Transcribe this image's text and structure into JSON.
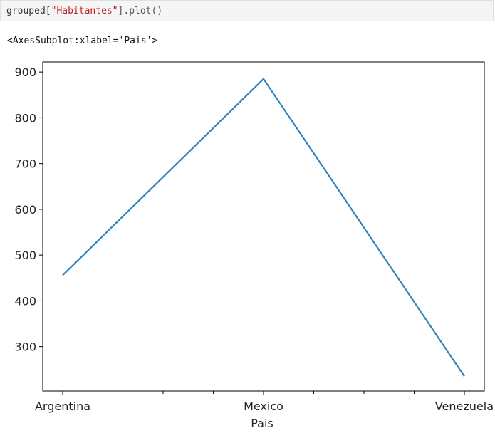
{
  "cell": {
    "code_prefix": "grouped[",
    "code_string": "\"Habitantes\"",
    "code_suffix": "].plot()"
  },
  "output": {
    "repr": "<AxesSubplot:xlabel='Pais'>"
  },
  "chart_data": {
    "type": "line",
    "categories": [
      "Argentina",
      "Mexico",
      "Venezuela"
    ],
    "series": [
      {
        "values": [
          456,
          885,
          235
        ],
        "color": "#3182bd"
      }
    ],
    "xlabel": "Pais",
    "ylabel": "",
    "yticks": [
      300,
      400,
      500,
      600,
      700,
      800,
      900
    ],
    "ylim": [
      203,
      922
    ],
    "minor_xticks_between": 3,
    "grid": false,
    "legend": false
  }
}
